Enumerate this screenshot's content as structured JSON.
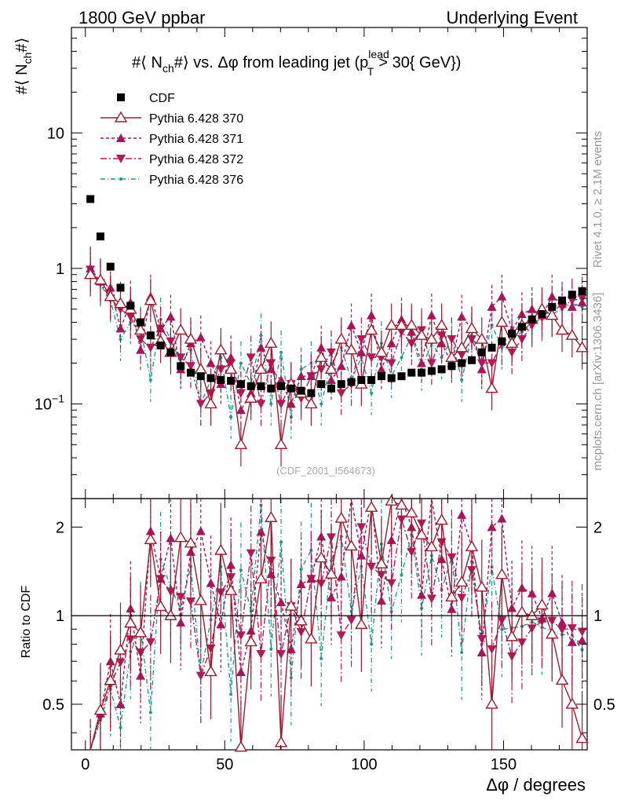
{
  "header": {
    "left": "1800 GeV ppbar",
    "right": "Underlying Event"
  },
  "side_labels": {
    "rivet": "Rivet 4.1.0, ≥ 2.1M events",
    "mcplots": "mcplots.cern.ch [arXiv:1306.3436]"
  },
  "watermark": "(CDF_2001_I564673)",
  "chart_data": [
    {
      "type": "scatter",
      "panel": "main",
      "title": "#⟨ N_ch #⟩ vs. Δφ from leading jet  (p_T^lead > 30{ GeV})",
      "ylabel": "#⟨ N_ch #⟩",
      "xlabel": "Δφ / degrees",
      "xlim": [
        -5,
        180
      ],
      "ylim": [
        0.02,
        60
      ],
      "yscale": "log",
      "x_ticks": [
        "0",
        "50",
        "100",
        "150"
      ],
      "y_tick_labels": [
        "10",
        "1",
        "10^{-1}"
      ],
      "legend_position": "top-left",
      "colors": {
        "cdf": "#000000",
        "p370": "#9b1b30",
        "p371": "#a8165a",
        "p372": "#b01c55",
        "p376": "#1a9c86"
      },
      "x": [
        1.8,
        5.4,
        9,
        12.6,
        16.2,
        19.8,
        23.4,
        27,
        30.6,
        34.2,
        37.8,
        41.4,
        45,
        48.6,
        52.2,
        55.8,
        59.4,
        63,
        66.6,
        70.2,
        73.8,
        77.4,
        81,
        84.6,
        88.2,
        91.8,
        95.4,
        99,
        102.6,
        106.2,
        109.8,
        113.4,
        117,
        120.6,
        124.2,
        127.8,
        131.4,
        135,
        138.6,
        142.2,
        145.8,
        149.4,
        153,
        156.6,
        160.2,
        163.8,
        167.4,
        171,
        174.6,
        178.2
      ],
      "series": [
        {
          "name": "CDF",
          "values": [
            3.25,
            1.72,
            1.03,
            0.72,
            0.53,
            0.4,
            0.32,
            0.27,
            0.24,
            0.19,
            0.17,
            0.16,
            0.155,
            0.15,
            0.148,
            0.14,
            0.135,
            0.135,
            0.13,
            0.135,
            0.13,
            0.125,
            0.12,
            0.14,
            0.13,
            0.14,
            0.145,
            0.15,
            0.15,
            0.16,
            0.155,
            0.16,
            0.17,
            0.17,
            0.175,
            0.18,
            0.19,
            0.2,
            0.21,
            0.24,
            0.26,
            0.29,
            0.33,
            0.37,
            0.42,
            0.46,
            0.52,
            0.58,
            0.64,
            0.68
          ]
        },
        {
          "name": "Pythia 6.428 370",
          "values": [
            0.9,
            0.82,
            0.62,
            0.55,
            0.5,
            0.35,
            0.58,
            0.29,
            0.24,
            0.35,
            0.3,
            0.18,
            0.1,
            0.25,
            0.18,
            0.05,
            0.11,
            0.18,
            0.28,
            0.05,
            0.14,
            0.12,
            0.1,
            0.22,
            0.18,
            0.3,
            0.25,
            0.14,
            0.35,
            0.24,
            0.38,
            0.38,
            0.38,
            0.32,
            0.3,
            0.38,
            0.22,
            0.26,
            0.36,
            0.3,
            0.13,
            0.4,
            0.28,
            0.38,
            0.42,
            0.5,
            0.45,
            0.35,
            0.32,
            0.26
          ]
        },
        {
          "name": "Pythia 6.428 371",
          "values": [
            1.0,
            0.8,
            0.72,
            0.36,
            0.56,
            0.25,
            0.62,
            0.36,
            0.44,
            0.18,
            0.28,
            0.31,
            0.2,
            0.14,
            0.22,
            0.09,
            0.12,
            0.26,
            0.18,
            0.15,
            0.1,
            0.16,
            0.16,
            0.26,
            0.15,
            0.19,
            0.38,
            0.24,
            0.45,
            0.18,
            0.28,
            0.42,
            0.34,
            0.2,
            0.45,
            0.28,
            0.2,
            0.44,
            0.36,
            0.18,
            0.52,
            0.62,
            0.35,
            0.46,
            0.5,
            0.45,
            0.62,
            0.55,
            0.52,
            0.56
          ]
        },
        {
          "name": "Pythia 6.428 372",
          "values": [
            0.98,
            0.78,
            0.6,
            0.5,
            0.44,
            0.3,
            0.26,
            0.36,
            0.29,
            0.22,
            0.19,
            0.1,
            0.12,
            0.18,
            0.2,
            0.12,
            0.22,
            0.1,
            0.2,
            0.1,
            0.14,
            0.11,
            0.16,
            0.18,
            0.24,
            0.12,
            0.14,
            0.3,
            0.22,
            0.22,
            0.2,
            0.34,
            0.28,
            0.35,
            0.2,
            0.32,
            0.3,
            0.23,
            0.3,
            0.2,
            0.2,
            0.28,
            0.24,
            0.3,
            0.38,
            0.44,
            0.5,
            0.52,
            0.58,
            0.6
          ]
        },
        {
          "name": "Pythia 6.428 376",
          "values": [
            0.96,
            0.76,
            0.58,
            0.3,
            0.4,
            0.36,
            0.15,
            0.42,
            0.3,
            0.2,
            0.25,
            0.1,
            0.15,
            0.22,
            0.08,
            0.2,
            0.14,
            0.32,
            0.1,
            0.24,
            0.08,
            0.18,
            0.2,
            0.1,
            0.2,
            0.26,
            0.15,
            0.22,
            0.12,
            0.28,
            0.16,
            0.22,
            0.32,
            0.18,
            0.28,
            0.22,
            0.3,
            0.15,
            0.32,
            0.2,
            0.38,
            0.26,
            0.3,
            0.34,
            0.4,
            0.42,
            0.46,
            0.5,
            0.55,
            0.52
          ]
        }
      ]
    },
    {
      "type": "scatter",
      "panel": "ratio",
      "ylabel": "Ratio to CDF",
      "xlabel": "Δφ / degrees",
      "xlim": [
        -5,
        180
      ],
      "ylim": [
        0.35,
        2.5
      ],
      "y_ticks": [
        "0.5",
        "1",
        "2"
      ],
      "reference_line": 1
    }
  ]
}
